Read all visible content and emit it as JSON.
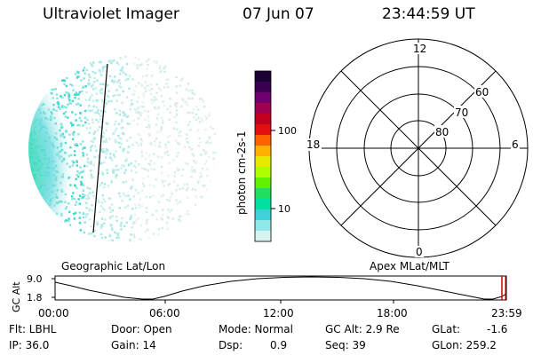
{
  "header": {
    "title": "Ultraviolet Imager",
    "date": "07 Jun 07",
    "time": "23:44:59 UT"
  },
  "colorbar": {
    "unit_label": "photon cm-2s-1",
    "ticks": [
      "100",
      "10"
    ],
    "colors": [
      "#1a0033",
      "#3a0050",
      "#700070",
      "#a00050",
      "#c00020",
      "#e01010",
      "#ff6000",
      "#ffb000",
      "#e8e800",
      "#b0ff00",
      "#60f000",
      "#20e060",
      "#00e0a0",
      "#40d0d8",
      "#90e8e8",
      "#d8f4f0"
    ]
  },
  "polar": {
    "hour_labels": [
      "12",
      "18",
      "6",
      "0"
    ],
    "lat_labels": [
      "60",
      "70",
      "80"
    ]
  },
  "panels": {
    "left_label": "Geographic Lat/Lon",
    "right_label": "Apex MLat/MLT"
  },
  "altitude_plot": {
    "ylabel": "GC Alt",
    "yticks": [
      "9.0",
      "1.8"
    ],
    "xticks": [
      "00:00",
      "06:00",
      "12:00",
      "18:00",
      "23:59"
    ]
  },
  "info": {
    "flt": "Flt: LBHL",
    "ip": "IP: 36.0",
    "door": "Door: Open",
    "gain": "Gain: 14",
    "mode": "Mode: Normal",
    "dsp": "Dsp:",
    "dsp_value": "0.9",
    "gc_alt": "GC Alt: 2.9 Re",
    "seq": "Seq: 39",
    "glat": "GLat:",
    "glat_value": "-1.6",
    "glon": "GLon: 259.2"
  }
}
